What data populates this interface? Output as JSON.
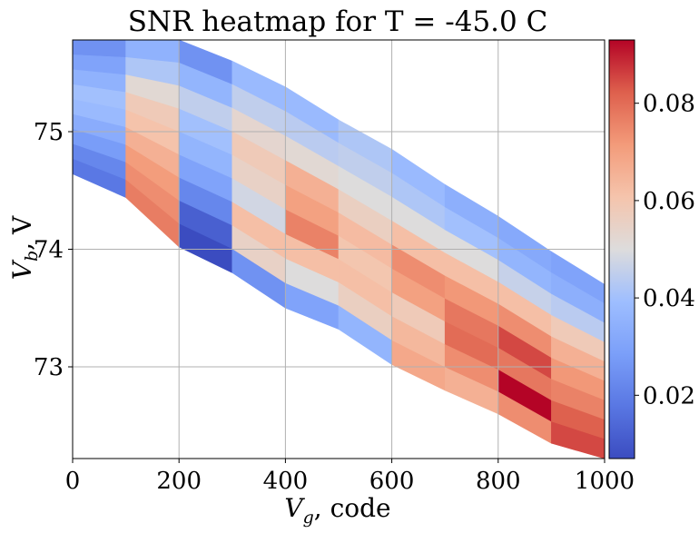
{
  "chart_data": {
    "type": "heatmap",
    "title": "SNR heatmap for T = -45.0 C",
    "xlabel": {
      "var": "V",
      "sub": "g",
      "suffix": ", code"
    },
    "ylabel": {
      "var": "V",
      "sub": "b",
      "suffix": ", V"
    },
    "xlim": [
      0,
      1000
    ],
    "ylim": [
      72.22,
      75.78
    ],
    "xticks": [
      0,
      200,
      400,
      600,
      800,
      1000
    ],
    "yticks": [
      73,
      74,
      75
    ],
    "grid": true,
    "colormap": "coolwarm",
    "colorbar": {
      "range": [
        0.007,
        0.093
      ],
      "ticks": [
        "0.02",
        "0.04",
        "0.06",
        "0.08"
      ],
      "tick_values": [
        0.02,
        0.04,
        0.06,
        0.08
      ]
    },
    "x_columns": [
      0,
      100,
      200,
      300,
      400,
      500,
      600,
      700,
      800,
      900,
      1000
    ],
    "columns": [
      {
        "x0": 0,
        "x1": 100,
        "ytop0": 75.78,
        "ytop1": 75.78,
        "ybot0": 74.64,
        "ybot1": 74.44,
        "values": [
          0.025,
          0.03,
          0.035,
          0.04,
          0.038,
          0.033,
          0.028,
          0.022,
          0.018
        ]
      },
      {
        "x0": 100,
        "x1": 200,
        "ytop0": 75.78,
        "ytop1": 75.78,
        "ybot0": 74.44,
        "ybot1": 74.02,
        "values": [
          0.035,
          0.042,
          0.052,
          0.058,
          0.061,
          0.066,
          0.071,
          0.074,
          0.077
        ]
      },
      {
        "x0": 200,
        "x1": 300,
        "ytop0": 75.78,
        "ytop1": 75.6,
        "ybot0": 74.02,
        "ybot1": 73.8,
        "values": [
          0.025,
          0.036,
          0.045,
          0.04,
          0.036,
          0.03,
          0.022,
          0.012,
          0.005
        ]
      },
      {
        "x0": 300,
        "x1": 400,
        "ytop0": 75.6,
        "ytop1": 75.38,
        "ybot0": 73.8,
        "ybot1": 73.5,
        "values": [
          0.038,
          0.045,
          0.053,
          0.058,
          0.055,
          0.048,
          0.062,
          0.055,
          0.025
        ]
      },
      {
        "x0": 400,
        "x1": 500,
        "ytop0": 75.38,
        "ytop1": 75.1,
        "ybot0": 73.5,
        "ybot1": 73.32,
        "values": [
          0.038,
          0.044,
          0.052,
          0.066,
          0.07,
          0.076,
          0.062,
          0.05,
          0.03
        ]
      },
      {
        "x0": 500,
        "x1": 600,
        "ytop0": 75.1,
        "ytop1": 74.85,
        "ybot0": 73.32,
        "ybot1": 73.02,
        "values": [
          0.042,
          0.045,
          0.05,
          0.056,
          0.063,
          0.06,
          0.062,
          0.056,
          0.036
        ]
      },
      {
        "x0": 600,
        "x1": 700,
        "ytop0": 74.85,
        "ytop1": 74.55,
        "ybot0": 73.02,
        "ybot1": 72.8,
        "values": [
          0.038,
          0.042,
          0.05,
          0.062,
          0.074,
          0.07,
          0.058,
          0.064,
          0.068
        ]
      },
      {
        "x0": 700,
        "x1": 800,
        "ytop0": 74.55,
        "ytop1": 74.28,
        "ybot0": 72.8,
        "ybot1": 72.6,
        "values": [
          0.034,
          0.04,
          0.05,
          0.062,
          0.072,
          0.078,
          0.08,
          0.074,
          0.066
        ]
      },
      {
        "x0": 800,
        "x1": 900,
        "ytop0": 74.28,
        "ytop1": 73.98,
        "ybot0": 72.6,
        "ybot1": 72.35,
        "values": [
          0.032,
          0.036,
          0.046,
          0.062,
          0.074,
          0.085,
          0.078,
          0.093,
          0.074
        ]
      },
      {
        "x0": 900,
        "x1": 1000,
        "ytop0": 73.98,
        "ytop1": 73.7,
        "ybot0": 72.35,
        "ybot1": 72.22,
        "values": [
          0.03,
          0.034,
          0.044,
          0.058,
          0.066,
          0.072,
          0.076,
          0.082,
          0.085
        ]
      }
    ]
  }
}
